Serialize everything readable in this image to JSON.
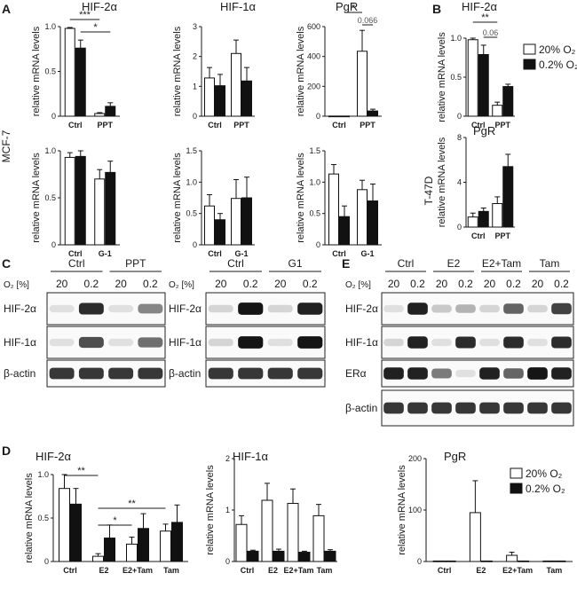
{
  "panels": {
    "A": {
      "label": "A",
      "row_label": "MCF-7"
    },
    "B": {
      "label": "B",
      "row_label": "T-47D"
    },
    "C": {
      "label": "C"
    },
    "D": {
      "label": "D"
    },
    "E": {
      "label": "E"
    }
  },
  "legend": {
    "normoxia": "20% O₂",
    "hypoxia": "0.2% O₂"
  },
  "common": {
    "ylabel": "relative mRNA levels"
  },
  "chart_data": [
    {
      "id": "A1",
      "type": "bar",
      "title": "HIF-2α",
      "ylabel": "relative mRNA levels",
      "categories": [
        "Ctrl",
        "PPT"
      ],
      "series": [
        {
          "name": "20% O₂",
          "values": [
            0.98,
            0.03
          ],
          "errors": [
            0.01,
            0.01
          ]
        },
        {
          "name": "0.2% O₂",
          "values": [
            0.76,
            0.11
          ],
          "errors": [
            0.09,
            0.04
          ]
        }
      ],
      "ylim": [
        0,
        1.0
      ],
      "yticks": [
        0,
        0.5,
        1.0
      ],
      "yticklabels": [
        "0",
        "0.5",
        "1.0"
      ],
      "annotations": [
        {
          "text": "***",
          "from": 0,
          "to": 2
        },
        {
          "text": "*",
          "from": 1,
          "to": 3
        }
      ]
    },
    {
      "id": "A2",
      "type": "bar",
      "title": "HIF-1α",
      "ylabel": "relative mRNA levels",
      "categories": [
        "Ctrl",
        "PPT"
      ],
      "series": [
        {
          "name": "20% O₂",
          "values": [
            1.28,
            2.1
          ],
          "errors": [
            0.35,
            0.45
          ]
        },
        {
          "name": "0.2% O₂",
          "values": [
            1.02,
            1.18
          ],
          "errors": [
            0.38,
            0.45
          ]
        }
      ],
      "ylim": [
        0,
        3
      ],
      "yticks": [
        0,
        1,
        2,
        3
      ],
      "yticklabels": [
        "0",
        "1",
        "2",
        "3"
      ]
    },
    {
      "id": "A3",
      "type": "bar",
      "title": "PgR",
      "ylabel": "relative mRNA levels",
      "categories": [
        "Ctrl",
        "PPT"
      ],
      "series": [
        {
          "name": "20% O₂",
          "values": [
            1,
            435
          ],
          "errors": [
            0,
            140
          ]
        },
        {
          "name": "0.2% O₂",
          "values": [
            1,
            35
          ],
          "errors": [
            0,
            12
          ]
        }
      ],
      "ylim": [
        0,
        600
      ],
      "yticks": [
        0,
        200,
        400,
        600
      ],
      "yticklabels": [
        "0",
        "200",
        "400",
        "600"
      ],
      "annotations": [
        {
          "text": "*",
          "from": 1,
          "to": 2
        },
        {
          "text": "0.066",
          "from": 2,
          "to": 3
        }
      ]
    },
    {
      "id": "A4",
      "type": "bar",
      "title": "",
      "ylabel": "relative mRNA levels",
      "categories": [
        "Ctrl",
        "G-1"
      ],
      "series": [
        {
          "name": "20% O₂",
          "values": [
            0.93,
            0.7
          ],
          "errors": [
            0.05,
            0.1
          ]
        },
        {
          "name": "0.2% O₂",
          "values": [
            0.94,
            0.77
          ],
          "errors": [
            0.07,
            0.12
          ]
        }
      ],
      "ylim": [
        0,
        1.0
      ],
      "yticks": [
        0,
        0.5,
        1.0
      ],
      "yticklabels": [
        "0",
        "0.5",
        "1.0"
      ]
    },
    {
      "id": "A5",
      "type": "bar",
      "title": "",
      "ylabel": "relative mRNA levels",
      "categories": [
        "Ctrl",
        "G-1"
      ],
      "series": [
        {
          "name": "20% O₂",
          "values": [
            0.62,
            0.74
          ],
          "errors": [
            0.18,
            0.3
          ]
        },
        {
          "name": "0.2% O₂",
          "values": [
            0.4,
            0.75
          ],
          "errors": [
            0.1,
            0.33
          ]
        }
      ],
      "ylim": [
        0,
        1.5
      ],
      "yticks": [
        0,
        0.5,
        1.0,
        1.5
      ],
      "yticklabels": [
        "0",
        "0.5",
        "1.0",
        "1.5"
      ]
    },
    {
      "id": "A6",
      "type": "bar",
      "title": "",
      "ylabel": "relative mRNA levels",
      "categories": [
        "Ctrl",
        "G-1"
      ],
      "series": [
        {
          "name": "20% O₂",
          "values": [
            1.13,
            0.88
          ],
          "errors": [
            0.15,
            0.15
          ]
        },
        {
          "name": "0.2% O₂",
          "values": [
            0.45,
            0.7
          ],
          "errors": [
            0.17,
            0.27
          ]
        }
      ],
      "ylim": [
        0,
        1.5
      ],
      "yticks": [
        0,
        0.5,
        1.0,
        1.5
      ],
      "yticklabels": [
        "0",
        "0.5",
        "1.0",
        "1.5"
      ]
    },
    {
      "id": "B1",
      "type": "bar",
      "title": "HIF-2α",
      "ylabel": "relative mRNA levels",
      "categories": [
        "Ctrl",
        "PPT"
      ],
      "series": [
        {
          "name": "20% O₂",
          "values": [
            0.98,
            0.14
          ],
          "errors": [
            0.1,
            0.04
          ]
        },
        {
          "name": "0.2% O₂",
          "values": [
            0.79,
            0.38
          ],
          "errors": [
            0.12,
            0.03
          ]
        }
      ],
      "ylim": [
        0,
        1.0
      ],
      "yticks": [
        0,
        0.5,
        1.0
      ],
      "yticklabels": [
        "0",
        "0.5",
        "1.0"
      ],
      "annotations": [
        {
          "text": "**",
          "from": 0,
          "to": 2
        },
        {
          "text": "0.06",
          "from": 1,
          "to": 2
        }
      ]
    },
    {
      "id": "B2",
      "type": "bar",
      "title": "PgR",
      "ylabel": "relative mRNA levels",
      "categories": [
        "Ctrl",
        "PPT"
      ],
      "series": [
        {
          "name": "20% O₂",
          "values": [
            0.9,
            2.1
          ],
          "errors": [
            0.35,
            0.6
          ]
        },
        {
          "name": "0.2% O₂",
          "values": [
            1.4,
            5.4
          ],
          "errors": [
            0.3,
            1.1
          ]
        }
      ],
      "ylim": [
        0,
        8
      ],
      "yticks": [
        0,
        4,
        8
      ],
      "yticklabels": [
        "0",
        "4",
        "8"
      ]
    },
    {
      "id": "D1",
      "type": "bar",
      "title": "HIF-2α",
      "ylabel": "relative mRNA levels",
      "categories": [
        "Ctrl",
        "E2",
        "E2+Tam",
        "Tam"
      ],
      "series": [
        {
          "name": "20% O₂",
          "values": [
            0.84,
            0.06,
            0.2,
            0.35
          ],
          "errors": [
            0.17,
            0.03,
            0.08,
            0.08
          ]
        },
        {
          "name": "0.2% O₂",
          "values": [
            0.66,
            0.27,
            0.38,
            0.45
          ],
          "errors": [
            0.18,
            0.15,
            0.17,
            0.2
          ]
        }
      ],
      "ylim": [
        0,
        1.0
      ],
      "yticks": [
        0,
        0.5,
        1.0
      ],
      "yticklabels": [
        "0",
        "0.5",
        "1.0"
      ],
      "annotations": [
        {
          "text": "**",
          "from": 0,
          "to": 2
        },
        {
          "text": "*",
          "from": 2,
          "to": 4
        },
        {
          "text": "**",
          "from": 2,
          "to": 6
        }
      ]
    },
    {
      "id": "D2",
      "type": "bar",
      "title": "HIF-1α",
      "ylabel": "relative mRNA levels",
      "categories": [
        "Ctrl",
        "E2",
        "E2+Tam",
        "Tam"
      ],
      "series": [
        {
          "name": "20% O₂",
          "values": [
            0.72,
            1.19,
            1.13,
            0.89
          ],
          "errors": [
            0.17,
            0.33,
            0.28,
            0.22
          ]
        },
        {
          "name": "0.2% O₂",
          "values": [
            0.2,
            0.2,
            0.18,
            0.2
          ],
          "errors": [
            0.02,
            0.04,
            0.02,
            0.03
          ]
        }
      ],
      "ylim": [
        0,
        2
      ],
      "yticks": [
        0,
        1,
        2
      ],
      "yticklabels": [
        "0",
        "1",
        "2"
      ]
    },
    {
      "id": "D3",
      "type": "bar",
      "title": "PgR",
      "ylabel": "relative mRNA levels",
      "categories": [
        "Ctrl",
        "E2",
        "E2+Tam",
        "Tam"
      ],
      "series": [
        {
          "name": "20% O₂",
          "values": [
            1,
            95,
            12,
            1
          ],
          "errors": [
            0,
            62,
            6,
            0
          ]
        },
        {
          "name": "0.2% O₂",
          "values": [
            1,
            1,
            1,
            1
          ],
          "errors": [
            0,
            0,
            0,
            0
          ]
        }
      ],
      "ylim": [
        0,
        200
      ],
      "yticks": [
        0,
        100,
        200
      ],
      "yticklabels": [
        "0",
        "100",
        "200"
      ]
    }
  ],
  "blots": {
    "C1": {
      "groups": [
        "Ctrl",
        "PPT"
      ],
      "o2_label": "O₂ [%]",
      "lanes": [
        "20",
        "0.2",
        "20",
        "0.2"
      ],
      "rows": [
        "HIF-2α",
        "HIF-1α",
        "β-actin"
      ]
    },
    "C2": {
      "groups": [
        "Ctrl",
        "G1"
      ],
      "o2_label": "O₂ [%]",
      "lanes": [
        "20",
        "0.2",
        "20",
        "0.2"
      ],
      "rows": [
        "HIF-2α",
        "HIF-1α",
        "β-actin"
      ]
    },
    "E": {
      "groups": [
        "Ctrl",
        "E2",
        "E2+Tam",
        "Tam"
      ],
      "o2_label": "O₂ [%]",
      "lanes": [
        "20",
        "0.2",
        "20",
        "0.2",
        "20",
        "0.2",
        "20",
        "0.2"
      ],
      "rows": [
        "HIF-2α",
        "HIF-1α",
        "ERα",
        "β-actin"
      ]
    }
  }
}
